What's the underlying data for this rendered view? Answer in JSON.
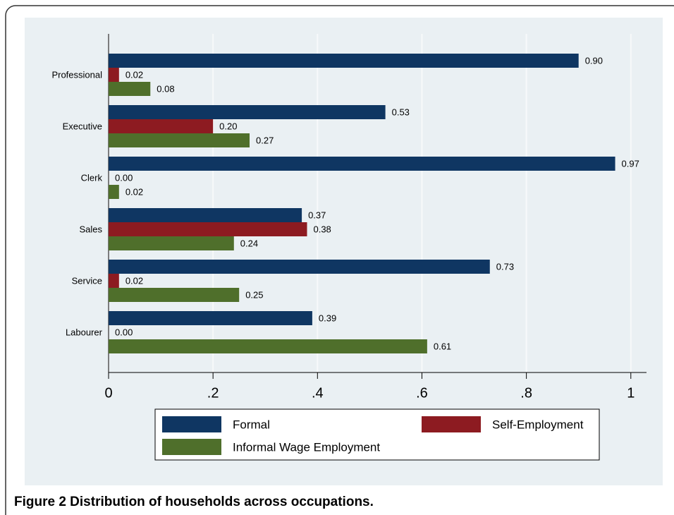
{
  "chart_data": {
    "type": "bar",
    "orientation": "horizontal",
    "caption": "Figure 2 Distribution of households across occupations.",
    "categories": [
      "Professional",
      "Executive",
      "Clerk",
      "Sales",
      "Service",
      "Labourer"
    ],
    "series": [
      {
        "name": "Formal",
        "color": "#0f3662",
        "values": [
          0.9,
          0.53,
          0.97,
          0.37,
          0.73,
          0.39
        ],
        "value_labels": [
          "0.90",
          "0.53",
          "0.97",
          "0.37",
          "0.73",
          "0.39"
        ]
      },
      {
        "name": "Self-Employment",
        "color": "#8d1b21",
        "values": [
          0.02,
          0.2,
          0.0,
          0.38,
          0.02,
          0.0
        ],
        "value_labels": [
          "0.02",
          "0.20",
          "0.00",
          "0.38",
          "0.02",
          "0.00"
        ]
      },
      {
        "name": "Informal Wage Employment",
        "color": "#4f6f2b",
        "values": [
          0.08,
          0.27,
          0.02,
          0.24,
          0.25,
          0.61
        ],
        "value_labels": [
          "0.08",
          "0.27",
          "0.02",
          "0.24",
          "0.25",
          "0.61"
        ]
      }
    ],
    "xlim": [
      0,
      1.03
    ],
    "xticks": [
      0,
      {
        "value": 0.2,
        "label": ".2"
      },
      {
        "value": 0.4,
        "label": ".4"
      },
      {
        "value": 0.6,
        "label": ".6"
      },
      {
        "value": 0.8,
        "label": ".8"
      },
      1
    ],
    "grid": true
  }
}
